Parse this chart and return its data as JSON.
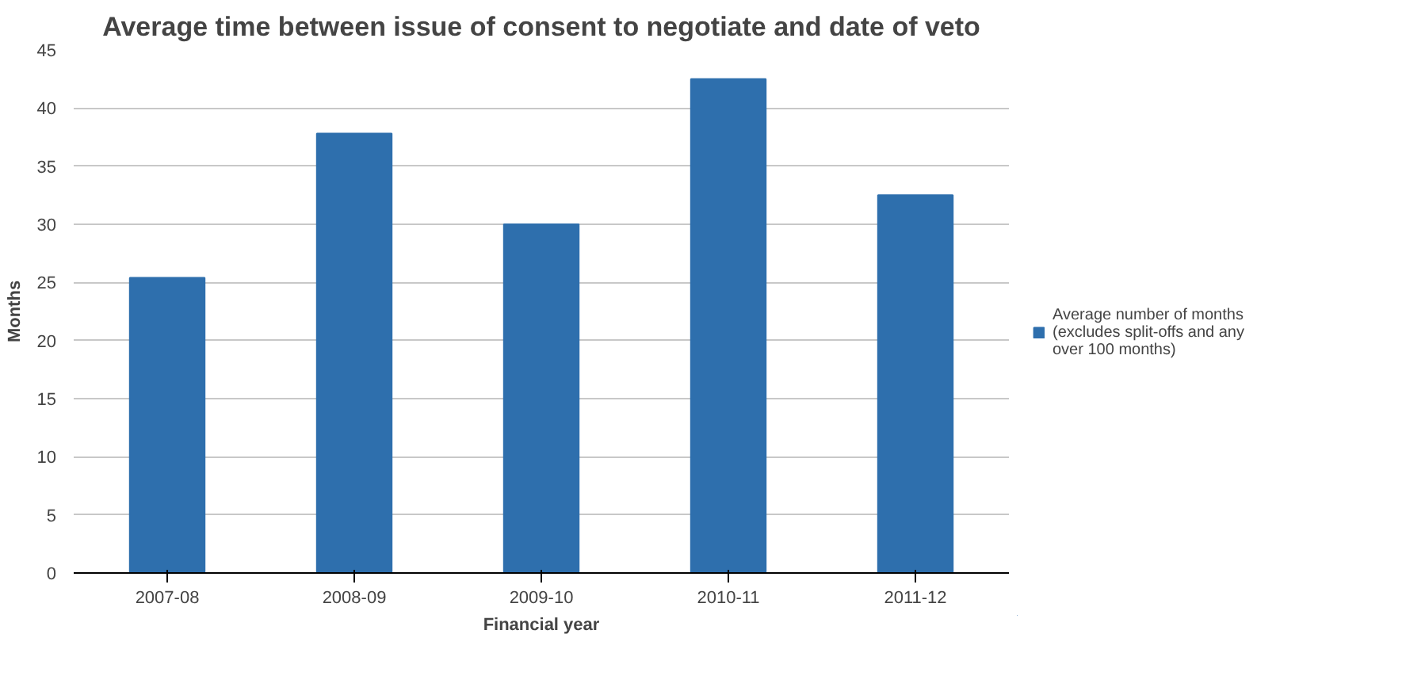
{
  "chart_data": {
    "type": "bar",
    "title": "Average time between issue of consent to negotiate and date of veto",
    "xlabel": "Financial year",
    "ylabel": "Months",
    "categories": [
      "2007-08",
      "2008-09",
      "2009-10",
      "2010-11",
      "2011-12"
    ],
    "series": [
      {
        "name": "Average number of months (excludes split-offs and any over 100 months)",
        "color": "#2e6fad",
        "values": [
          25.4,
          37.8,
          30,
          42.5,
          32.5
        ]
      }
    ],
    "ylim": [
      0,
      45
    ],
    "yticks": [
      0,
      5,
      10,
      15,
      20,
      25,
      30,
      35,
      40,
      45
    ],
    "grid": "y",
    "legend": "right"
  }
}
